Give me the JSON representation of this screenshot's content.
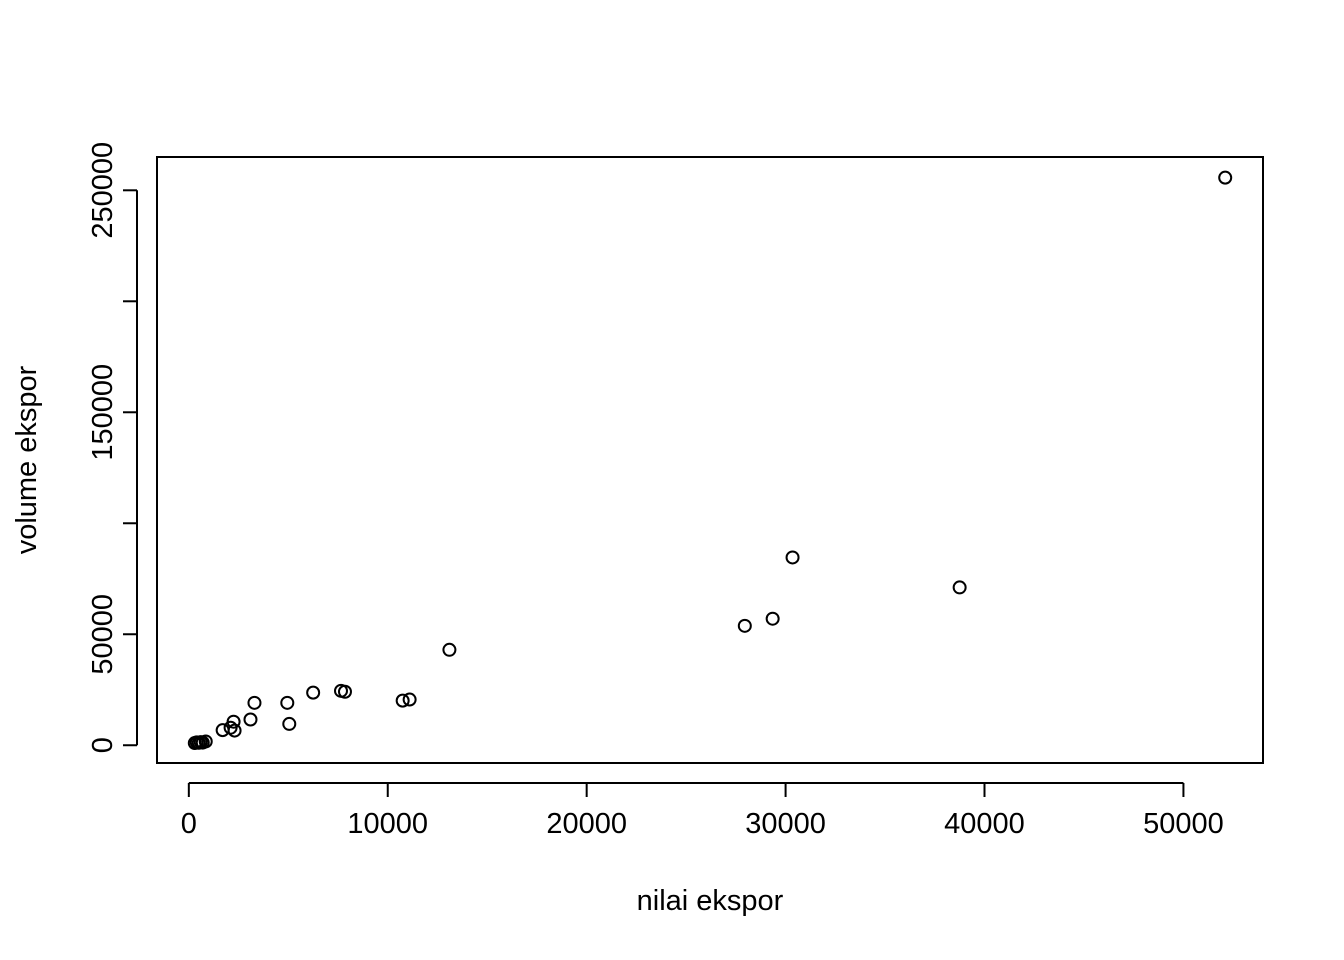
{
  "chart_data": {
    "type": "scatter",
    "title": "",
    "xlabel": "nilai ekspor",
    "ylabel": "volume ekspor",
    "xlim": [
      -1600,
      54000
    ],
    "ylim": [
      -8000,
      265000
    ],
    "x_ticks": [
      0,
      10000,
      20000,
      30000,
      40000,
      50000
    ],
    "y_ticks": [
      0,
      50000,
      100000,
      150000,
      200000,
      250000
    ],
    "y_tick_labels": [
      "0",
      "50000",
      "",
      "150000",
      "",
      "250000"
    ],
    "grid": false,
    "legend": "none",
    "point_color": "#000000",
    "points": [
      {
        "x": 300,
        "y": 1000
      },
      {
        "x": 400,
        "y": 1300
      },
      {
        "x": 500,
        "y": 1100
      },
      {
        "x": 600,
        "y": 1400
      },
      {
        "x": 700,
        "y": 1200
      },
      {
        "x": 850,
        "y": 1700
      },
      {
        "x": 1700,
        "y": 6800
      },
      {
        "x": 2100,
        "y": 7900
      },
      {
        "x": 2250,
        "y": 10600
      },
      {
        "x": 2300,
        "y": 6600
      },
      {
        "x": 3100,
        "y": 11600
      },
      {
        "x": 3300,
        "y": 19100
      },
      {
        "x": 4950,
        "y": 19100
      },
      {
        "x": 5050,
        "y": 9600
      },
      {
        "x": 6250,
        "y": 23700
      },
      {
        "x": 7650,
        "y": 24500
      },
      {
        "x": 7850,
        "y": 24100
      },
      {
        "x": 10750,
        "y": 20100
      },
      {
        "x": 11100,
        "y": 20600
      },
      {
        "x": 13100,
        "y": 43000
      },
      {
        "x": 27950,
        "y": 53800
      },
      {
        "x": 29350,
        "y": 57000
      },
      {
        "x": 30350,
        "y": 84600
      },
      {
        "x": 38750,
        "y": 71100
      },
      {
        "x": 52100,
        "y": 255700
      }
    ]
  }
}
